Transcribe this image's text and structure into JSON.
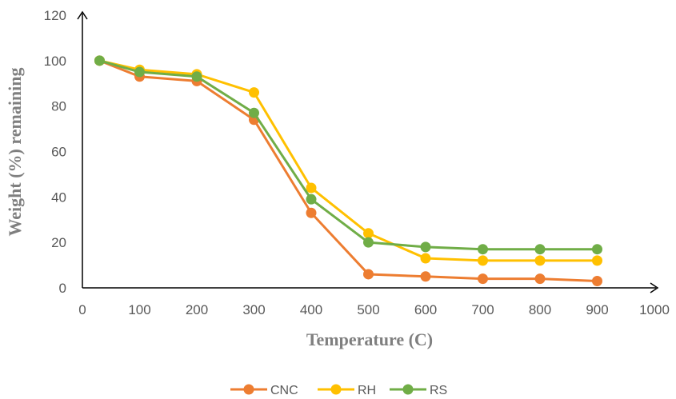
{
  "chart_data": {
    "type": "line",
    "title": "",
    "xlabel": "Temperature (C)",
    "ylabel": "Weight (%) remaining",
    "xlim": [
      0,
      1000
    ],
    "ylim": [
      0,
      120
    ],
    "xticks": [
      0,
      100,
      200,
      300,
      400,
      500,
      600,
      700,
      800,
      900,
      1000
    ],
    "yticks": [
      0,
      20,
      40,
      60,
      80,
      100,
      120
    ],
    "grid": false,
    "legend": "bottom",
    "x": [
      30,
      100,
      200,
      300,
      400,
      500,
      600,
      700,
      800,
      900
    ],
    "series": [
      {
        "name": "CNC",
        "color": "#ED7D31",
        "values": [
          100,
          93,
          91,
          74,
          33,
          6,
          5,
          4,
          4,
          3
        ]
      },
      {
        "name": "RH",
        "color": "#FFC000",
        "values": [
          100,
          96,
          94,
          86,
          44,
          24,
          13,
          12,
          12,
          12
        ]
      },
      {
        "name": "RS",
        "color": "#70AD47",
        "values": [
          100,
          95,
          93,
          77,
          39,
          20,
          18,
          17,
          17,
          17
        ]
      }
    ]
  }
}
